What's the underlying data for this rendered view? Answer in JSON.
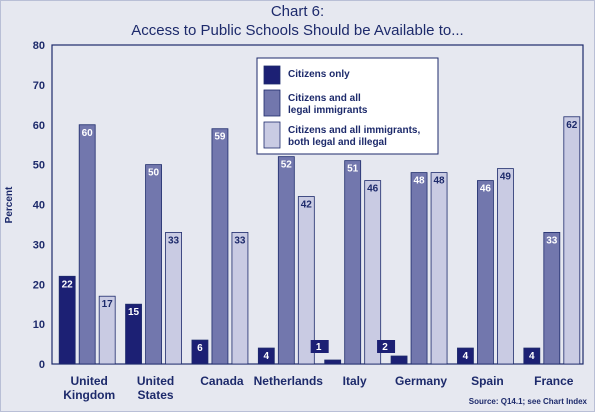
{
  "page": {
    "title_line1": "Chart 6:",
    "title_line2": "Access to Public Schools Should be Available to...",
    "source": "Source: Q14.1; see Chart Index"
  },
  "colors": {
    "series1": "#1c2074",
    "series2": "#7277ad",
    "series3": "#c9cbe3",
    "text": "#1d2a6b",
    "background": "#e6e8f0"
  },
  "chart_data": {
    "type": "bar",
    "ylabel": "Percent",
    "ylim": [
      0,
      80
    ],
    "yticks": [
      0,
      10,
      20,
      30,
      40,
      50,
      60,
      70,
      80
    ],
    "grid": false,
    "legend_position": "top-center",
    "categories": [
      [
        "United",
        "Kingdom"
      ],
      [
        "United",
        "States"
      ],
      [
        "Canada"
      ],
      [
        "Netherlands"
      ],
      [
        "Italy"
      ],
      [
        "Germany"
      ],
      [
        "Spain"
      ],
      [
        "France"
      ]
    ],
    "series": [
      {
        "name": "Citizens only",
        "values": [
          22,
          15,
          6,
          4,
          1,
          2,
          4,
          4
        ]
      },
      {
        "name": "Citizens and all legal immigrants",
        "values": [
          60,
          50,
          59,
          52,
          51,
          48,
          46,
          33
        ]
      },
      {
        "name": "Citizens and all immigrants, both legal and illegal",
        "values": [
          17,
          33,
          33,
          42,
          46,
          48,
          49,
          62
        ]
      }
    ],
    "legend_lines": [
      [
        "Citizens only"
      ],
      [
        "Citizens and all",
        "legal immigrants"
      ],
      [
        "Citizens and all immigrants,",
        "both legal and illegal"
      ]
    ]
  }
}
